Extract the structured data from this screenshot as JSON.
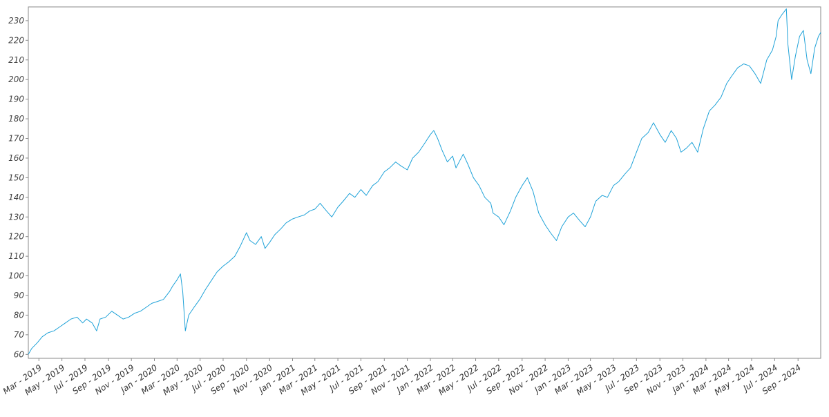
{
  "chart_data": {
    "type": "line",
    "title": "",
    "xlabel": "",
    "ylabel": "",
    "ylim": [
      58,
      237
    ],
    "xlim": [
      "2019-02-01",
      "2024-10-31"
    ],
    "yticks": [
      60,
      70,
      80,
      90,
      100,
      110,
      120,
      130,
      140,
      150,
      160,
      170,
      180,
      190,
      200,
      210,
      220,
      230
    ],
    "xticks": [
      {
        "date": "2019-03-01",
        "label": "Mar - 2019"
      },
      {
        "date": "2019-05-01",
        "label": "May - 2019"
      },
      {
        "date": "2019-07-01",
        "label": "Jul - 2019"
      },
      {
        "date": "2019-09-01",
        "label": "Sep - 2019"
      },
      {
        "date": "2019-11-01",
        "label": "Nov - 2019"
      },
      {
        "date": "2020-01-01",
        "label": "Jan - 2020"
      },
      {
        "date": "2020-03-01",
        "label": "Mar - 2020"
      },
      {
        "date": "2020-05-01",
        "label": "May - 2020"
      },
      {
        "date": "2020-07-01",
        "label": "Jul - 2020"
      },
      {
        "date": "2020-09-01",
        "label": "Sep - 2020"
      },
      {
        "date": "2020-11-01",
        "label": "Nov - 2020"
      },
      {
        "date": "2021-01-01",
        "label": "Jan - 2021"
      },
      {
        "date": "2021-03-01",
        "label": "Mar - 2021"
      },
      {
        "date": "2021-05-01",
        "label": "May - 2021"
      },
      {
        "date": "2021-07-01",
        "label": "Jul - 2021"
      },
      {
        "date": "2021-09-01",
        "label": "Sep - 2021"
      },
      {
        "date": "2021-11-01",
        "label": "Nov - 2021"
      },
      {
        "date": "2022-01-01",
        "label": "Jan - 2022"
      },
      {
        "date": "2022-03-01",
        "label": "Mar - 2022"
      },
      {
        "date": "2022-05-01",
        "label": "May - 2022"
      },
      {
        "date": "2022-07-01",
        "label": "Jul - 2022"
      },
      {
        "date": "2022-09-01",
        "label": "Sep - 2022"
      },
      {
        "date": "2022-11-01",
        "label": "Nov - 2022"
      },
      {
        "date": "2023-01-01",
        "label": "Jan - 2023"
      },
      {
        "date": "2023-03-01",
        "label": "Mar - 2023"
      },
      {
        "date": "2023-05-01",
        "label": "May - 2023"
      },
      {
        "date": "2023-07-01",
        "label": "Jul - 2023"
      },
      {
        "date": "2023-09-01",
        "label": "Sep - 2023"
      },
      {
        "date": "2023-11-01",
        "label": "Nov - 2023"
      },
      {
        "date": "2024-01-01",
        "label": "Jan - 2024"
      },
      {
        "date": "2024-03-01",
        "label": "Mar - 2024"
      },
      {
        "date": "2024-05-01",
        "label": "May - 2024"
      },
      {
        "date": "2024-07-01",
        "label": "Jul - 2024"
      },
      {
        "date": "2024-09-01",
        "label": "Sep - 2024"
      }
    ],
    "grid": false,
    "legend": "none",
    "colors": {
      "line": "#1fa2d8",
      "axis": "#888888"
    },
    "series": [
      {
        "x": [
          "2019-02-01",
          "2019-02-10",
          "2019-02-25",
          "2019-03-10",
          "2019-03-25",
          "2019-04-10",
          "2019-04-25",
          "2019-05-10",
          "2019-05-25",
          "2019-06-10",
          "2019-06-25",
          "2019-07-05",
          "2019-07-20",
          "2019-08-01",
          "2019-08-10",
          "2019-08-25",
          "2019-09-10",
          "2019-09-25",
          "2019-10-10",
          "2019-10-25",
          "2019-11-10",
          "2019-11-25",
          "2019-12-10",
          "2019-12-25",
          "2020-01-10",
          "2020-01-25",
          "2020-02-10",
          "2020-02-19",
          "2020-03-01",
          "2020-03-10",
          "2020-03-16",
          "2020-03-23",
          "2020-04-01",
          "2020-04-15",
          "2020-04-30",
          "2020-05-15",
          "2020-06-01",
          "2020-06-15",
          "2020-07-01",
          "2020-07-15",
          "2020-08-01",
          "2020-08-15",
          "2020-09-01",
          "2020-09-10",
          "2020-09-25",
          "2020-10-10",
          "2020-10-20",
          "2020-11-01",
          "2020-11-15",
          "2020-12-01",
          "2020-12-15",
          "2021-01-01",
          "2021-01-15",
          "2021-02-01",
          "2021-02-15",
          "2021-03-01",
          "2021-03-15",
          "2021-04-01",
          "2021-04-15",
          "2021-05-01",
          "2021-05-15",
          "2021-06-01",
          "2021-06-15",
          "2021-07-01",
          "2021-07-15",
          "2021-08-01",
          "2021-08-15",
          "2021-09-01",
          "2021-09-15",
          "2021-10-01",
          "2021-10-15",
          "2021-11-01",
          "2021-11-15",
          "2021-12-01",
          "2021-12-15",
          "2022-01-01",
          "2022-01-10",
          "2022-01-20",
          "2022-02-01",
          "2022-02-15",
          "2022-03-01",
          "2022-03-10",
          "2022-03-29",
          "2022-04-10",
          "2022-04-25",
          "2022-05-10",
          "2022-05-25",
          "2022-06-10",
          "2022-06-16",
          "2022-07-01",
          "2022-07-15",
          "2022-08-01",
          "2022-08-15",
          "2022-09-01",
          "2022-09-15",
          "2022-09-30",
          "2022-10-15",
          "2022-11-01",
          "2022-11-15",
          "2022-12-01",
          "2022-12-15",
          "2023-01-01",
          "2023-01-15",
          "2023-02-01",
          "2023-02-15",
          "2023-03-01",
          "2023-03-15",
          "2023-04-01",
          "2023-04-15",
          "2023-05-01",
          "2023-05-15",
          "2023-06-01",
          "2023-06-15",
          "2023-07-01",
          "2023-07-15",
          "2023-08-01",
          "2023-08-15",
          "2023-09-01",
          "2023-09-15",
          "2023-10-01",
          "2023-10-15",
          "2023-10-27",
          "2023-11-10",
          "2023-11-25",
          "2023-12-10",
          "2023-12-25",
          "2024-01-10",
          "2024-01-25",
          "2024-02-10",
          "2024-02-25",
          "2024-03-10",
          "2024-03-25",
          "2024-04-10",
          "2024-04-25",
          "2024-05-10",
          "2024-05-25",
          "2024-06-10",
          "2024-06-25",
          "2024-07-05",
          "2024-07-10",
          "2024-07-20",
          "2024-08-01",
          "2024-08-05",
          "2024-08-15",
          "2024-08-25",
          "2024-09-05",
          "2024-09-15",
          "2024-09-25",
          "2024-10-05",
          "2024-10-15",
          "2024-10-25",
          "2024-10-31"
        ],
        "y": [
          60,
          63,
          66,
          69,
          71,
          72,
          74,
          76,
          78,
          79,
          76,
          78,
          76,
          72,
          78,
          79,
          82,
          80,
          78,
          79,
          81,
          82,
          84,
          86,
          87,
          88,
          92,
          95,
          98,
          101,
          92,
          72,
          80,
          84,
          88,
          93,
          98,
          102,
          105,
          107,
          110,
          115,
          122,
          118,
          116,
          120,
          114,
          117,
          121,
          124,
          127,
          129,
          130,
          131,
          133,
          134,
          137,
          133,
          130,
          135,
          138,
          142,
          140,
          144,
          141,
          146,
          148,
          153,
          155,
          158,
          156,
          154,
          160,
          163,
          167,
          172,
          174,
          170,
          164,
          158,
          161,
          155,
          162,
          157,
          150,
          146,
          140,
          137,
          132,
          130,
          126,
          133,
          140,
          146,
          150,
          143,
          132,
          126,
          122,
          118,
          125,
          130,
          132,
          128,
          125,
          130,
          138,
          141,
          140,
          146,
          148,
          152,
          155,
          163,
          170,
          173,
          178,
          172,
          168,
          174,
          170,
          163,
          165,
          168,
          163,
          175,
          184,
          187,
          191,
          198,
          202,
          206,
          208,
          207,
          203,
          198,
          210,
          215,
          222,
          230,
          233,
          236,
          218,
          200,
          212,
          222,
          225,
          210,
          203,
          216,
          222,
          224
        ]
      }
    ]
  }
}
